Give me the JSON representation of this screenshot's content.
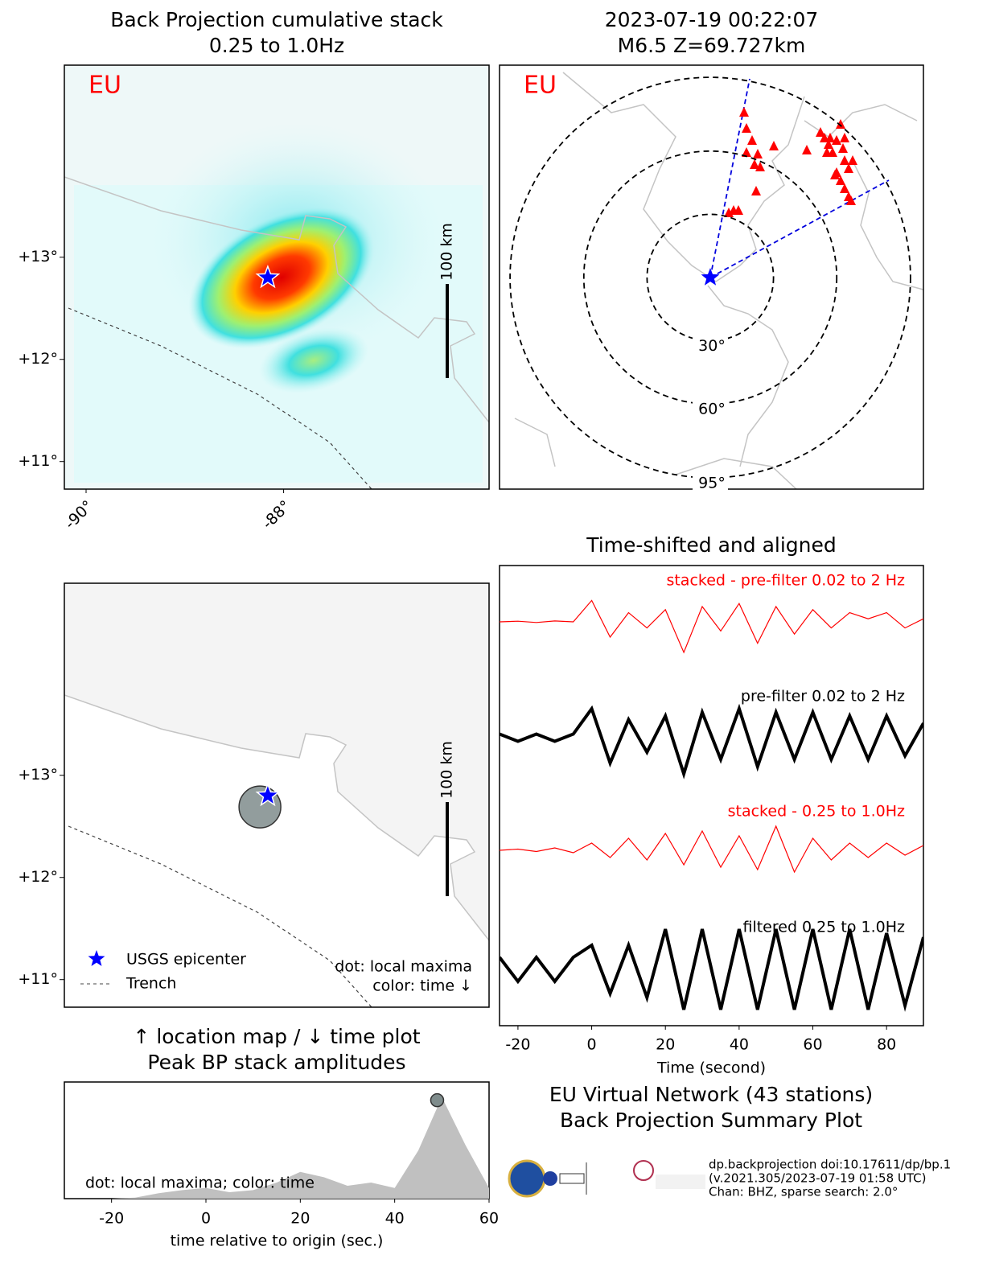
{
  "chart_data": [
    {
      "type": "map",
      "title": "Back Projection cumulative stack",
      "subtitle": "0.25 to 1.0Hz",
      "label": "EU",
      "xlim": [
        -90.22,
        -85.92
      ],
      "ylim": [
        10.73,
        14.88
      ],
      "xticks": [
        {
          "value": -90,
          "label": "-90°"
        },
        {
          "value": -88,
          "label": "-88°"
        }
      ],
      "yticks": [
        {
          "value": 11,
          "label": "+11°"
        },
        {
          "value": 12,
          "label": "+12°"
        },
        {
          "value": 13,
          "label": "+13°"
        }
      ],
      "scale_label": "100 km",
      "epicenter": {
        "lon": -88.16,
        "lat": 12.8
      }
    },
    {
      "type": "polar",
      "title": "2023-07-19 00:22:07",
      "subtitle": "M6.5 Z=69.727km",
      "label": "EU",
      "rings": [
        {
          "value": 30,
          "label": "30°"
        },
        {
          "value": 60,
          "label": "60°"
        },
        {
          "value": 95,
          "label": "95°"
        }
      ]
    },
    {
      "type": "map",
      "xlim": [
        -90.22,
        -85.92
      ],
      "ylim": [
        10.73,
        14.88
      ],
      "yticks": [
        {
          "value": 11,
          "label": "+11°"
        },
        {
          "value": 12,
          "label": "+12°"
        },
        {
          "value": 13,
          "label": "+13°"
        }
      ],
      "scale_label": "100 km",
      "epicenter": {
        "lon": -88.16,
        "lat": 12.8
      },
      "maxima": [
        {
          "lon": -88.24,
          "lat": 12.69
        }
      ],
      "legend": [
        "USGS epicenter",
        "Trench"
      ],
      "notes": [
        "dot: local maxima",
        "color: time ↓"
      ]
    },
    {
      "type": "line",
      "title": "Time-shifted and aligned",
      "xlabel": "Time (second)",
      "xlim": [
        -25,
        90
      ],
      "xticks": [
        -20,
        0,
        20,
        40,
        60,
        80
      ],
      "x": [
        -25,
        -20,
        -15,
        -10,
        -5,
        0,
        5,
        10,
        15,
        20,
        25,
        30,
        35,
        40,
        45,
        50,
        55,
        60,
        65,
        70,
        75,
        80,
        85,
        90
      ],
      "series": [
        {
          "name": "stacked - pre-filter 0.02 to 2 Hz",
          "color": "#ff0000",
          "values": [
            0,
            0.02,
            -0.02,
            0.03,
            0,
            0.7,
            -0.5,
            0.3,
            -0.2,
            0.4,
            -1,
            0.5,
            -0.3,
            0.6,
            -0.7,
            0.5,
            -0.4,
            0.4,
            -0.2,
            0.3,
            0.1,
            0.3,
            -0.2,
            0.1
          ]
        },
        {
          "name": "pre-filter 0.02 to 2 Hz",
          "color": "#000000",
          "values": [
            0.1,
            -0.1,
            0.1,
            -0.1,
            0.1,
            0.8,
            -0.7,
            0.5,
            -0.4,
            0.6,
            -1,
            0.7,
            -0.6,
            0.8,
            -0.8,
            0.7,
            -0.6,
            0.7,
            -0.6,
            0.6,
            -0.6,
            0.6,
            -0.5,
            0.4
          ]
        },
        {
          "name": "stacked - 0.25 to 1.0Hz",
          "color": "#ff0000",
          "values": [
            0,
            0.05,
            -0.05,
            0.1,
            -0.1,
            0.3,
            -0.3,
            0.5,
            -0.4,
            0.7,
            -0.6,
            0.8,
            -0.7,
            0.6,
            -0.8,
            1,
            -0.9,
            0.5,
            -0.4,
            0.3,
            -0.3,
            0.3,
            -0.2,
            0.2
          ]
        },
        {
          "name": "filtered 0.25 to 1.0Hz",
          "color": "#000000",
          "values": [
            0.3,
            -0.3,
            0.3,
            -0.3,
            0.3,
            0.6,
            -0.6,
            0.6,
            -0.7,
            1,
            -1,
            1,
            -1,
            1,
            -1,
            1,
            -1,
            1,
            -1,
            1,
            -1,
            0.9,
            -0.9,
            0.8
          ]
        }
      ]
    },
    {
      "type": "area",
      "title": "↑ location map / ↓ time plot",
      "subtitle": "Peak BP stack amplitudes",
      "xlabel": "time relative to origin (sec.)",
      "note": "dot: local maxima; color: time",
      "xlim": [
        -30,
        60
      ],
      "ylim": [
        0,
        1
      ],
      "xticks": [
        -20,
        0,
        20,
        40,
        60
      ],
      "x": [
        -30,
        -25,
        -20,
        -15,
        -10,
        -5,
        0,
        5,
        10,
        15,
        20,
        25,
        30,
        35,
        40,
        45,
        50,
        55,
        60
      ],
      "values": [
        0,
        0,
        0,
        0.01,
        0.05,
        0.08,
        0.1,
        0.06,
        0.08,
        0.15,
        0.25,
        0.2,
        0.12,
        0.15,
        0.1,
        0.45,
        0.95,
        0.5,
        0.1
      ],
      "color": "#c0c0c0",
      "maxima": {
        "x": 49,
        "y": 0.92
      }
    }
  ],
  "footer": {
    "title": "EU Virtual Network (43 stations)",
    "subtitle": "Back Projection Summary Plot",
    "lines": [
      "dp.backprojection doi:10.17611/dp/bp.1",
      "(v.2021.305/2023-07-19 01:58 UTC)",
      "Chan: BHZ, sparse search: 2.0°"
    ]
  }
}
